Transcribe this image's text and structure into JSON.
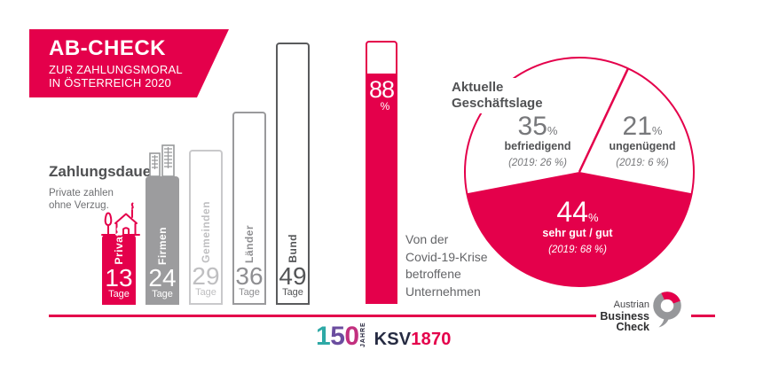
{
  "header": {
    "title": "AB-CHECK",
    "subtitle1": "ZUR ZAHLUNGSMORAL",
    "subtitle2": "IN ÖSTERREICH 2020"
  },
  "zahlungsdauer": {
    "heading": "Zahlungsdauer",
    "note1": "Private zahlen",
    "note2": "ohne Verzug."
  },
  "bars": [
    {
      "label": "Private",
      "value": 13,
      "unit": "Tage"
    },
    {
      "label": "Firmen",
      "value": 24,
      "unit": "Tage"
    },
    {
      "label": "Gemeinden",
      "value": 29,
      "unit": "Tage"
    },
    {
      "label": "Länder",
      "value": 36,
      "unit": "Tage"
    },
    {
      "label": "Bund",
      "value": 49,
      "unit": "Tage"
    }
  ],
  "covid": {
    "value": 88,
    "percent_sign": "%",
    "caption1": "Von der",
    "caption2": "Covid-19-Krise",
    "caption3": "betroffene",
    "caption4": "Unternehmen"
  },
  "pie": {
    "heading1": "Aktuelle",
    "heading2": "Geschäftslage",
    "befriedigend": {
      "value": "35",
      "pct": "%",
      "label": "befriedigend",
      "prior": "(2019: 26 %)"
    },
    "ungenuegend": {
      "value": "21",
      "pct": "%",
      "label": "ungenügend",
      "prior": "(2019: 6 %)"
    },
    "sehr_gut": {
      "value": "44",
      "pct": "%",
      "label": "sehr gut / gut",
      "prior": "(2019: 68 %)"
    }
  },
  "footer": {
    "digit1": "1",
    "digit5": "5",
    "digit0": "0",
    "jahre": "JAHRE",
    "ksv": "KSV",
    "year": "1870",
    "abc1": "Austrian",
    "abc2": "Business",
    "abc3": "Check"
  },
  "colors": {
    "pink": "#E4004B",
    "bar_gray": "#9C9C9E",
    "text_dark": "#515254",
    "text_gray": "#77787B"
  },
  "chart_data": [
    {
      "type": "bar",
      "title": "Zahlungsdauer",
      "subtitle": "Private zahlen ohne Verzug.",
      "categories": [
        "Private",
        "Firmen",
        "Gemeinden",
        "Länder",
        "Bund"
      ],
      "values": [
        13,
        24,
        29,
        36,
        49
      ],
      "unit": "Tage",
      "ylabel": "Tage",
      "ylim": [
        0,
        49
      ],
      "bar_colors": [
        "#E4004B",
        "#9C9C9E",
        "outline-light",
        "outline-mid",
        "outline-dark"
      ]
    },
    {
      "type": "bar",
      "title": "Von der Covid-19-Krise betroffene Unternehmen",
      "categories": [
        "betroffene Unternehmen"
      ],
      "values": [
        88
      ],
      "unit": "%",
      "ylim": [
        0,
        100
      ],
      "bar_colors": [
        "#E4004B"
      ]
    },
    {
      "type": "pie",
      "title": "Aktuelle Geschäftslage",
      "slices": [
        {
          "label": "sehr gut / gut",
          "value": 44,
          "value_2019": 68,
          "color": "#E4004B",
          "text_color": "#FFFFFF"
        },
        {
          "label": "befriedigend",
          "value": 35,
          "value_2019": 26,
          "color": "#FFFFFF",
          "text_color": "#77787B"
        },
        {
          "label": "ungenügend",
          "value": 21,
          "value_2019": 6,
          "color": "#FFFFFF",
          "text_color": "#77787B"
        }
      ],
      "legend_position": "inside"
    }
  ]
}
